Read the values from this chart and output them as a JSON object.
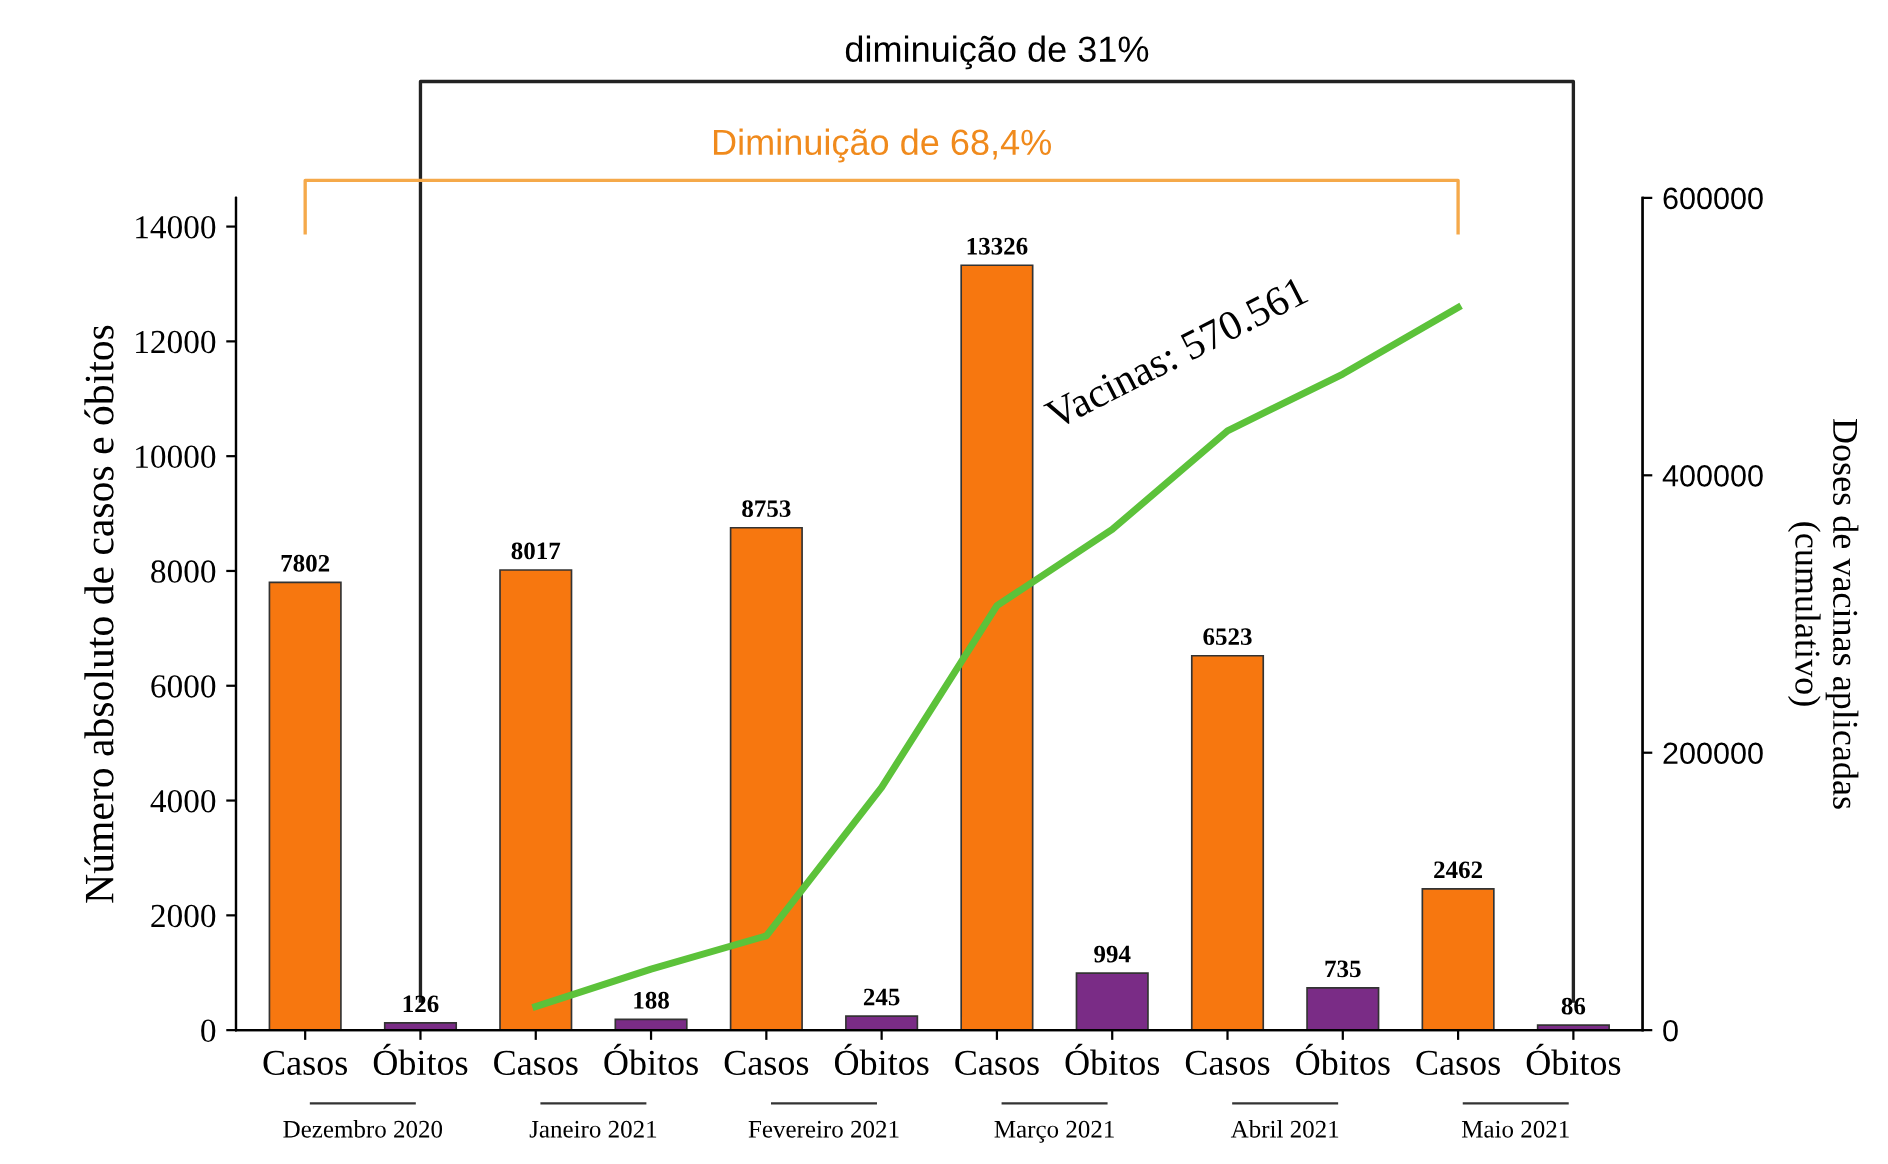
{
  "chart_data": {
    "type": "bar",
    "categories": [
      "Casos",
      "Óbitos",
      "Casos",
      "Óbitos",
      "Casos",
      "Óbitos",
      "Casos",
      "Óbitos",
      "Casos",
      "Óbitos",
      "Casos",
      "Óbitos"
    ],
    "series": [
      {
        "values": [
          7802,
          126,
          8017,
          188,
          8753,
          245,
          13326,
          994,
          6523,
          735,
          2462,
          86
        ],
        "value_labels": [
          "7802",
          "126",
          "8017",
          "188",
          "8753",
          "245",
          "13326",
          "994",
          "6523",
          "735",
          "2462",
          "86"
        ],
        "colors": [
          "#f7770f",
          "#7a2c86",
          "#f7770f",
          "#7a2c86",
          "#f7770f",
          "#7a2c86",
          "#f7770f",
          "#7a2c86",
          "#f7770f",
          "#7a2c86",
          "#f7770f",
          "#7a2c86"
        ]
      },
      {
        "type": "line",
        "axis": "y2",
        "color": "#5cc23a",
        "values": [
          null,
          null,
          17000,
          44000,
          68000,
          175000,
          306000,
          361000,
          432000,
          473000,
          521000,
          null
        ]
      }
    ],
    "ylabel": "Número absoluto de casos e óbitos",
    "y2label": "Doses de vacinas aplicadas\n(cumulativo)",
    "ylim": [
      0,
      14500
    ],
    "yticks": [
      0,
      2000,
      4000,
      6000,
      8000,
      10000,
      12000,
      14000
    ],
    "y2lim": [
      0,
      600000
    ],
    "y2ticks": [
      0,
      200000,
      400000,
      600000
    ],
    "grid": false,
    "legend": false,
    "annotations": [
      "Vacinas: 570.561",
      "diminuição de 31%",
      "Diminuição de 68,4%",
      "Dezembro 2020",
      "Janeiro 2021",
      "Fevereiro 2021",
      "Março 2021",
      "Abril 2021",
      "Maio 2021"
    ]
  }
}
